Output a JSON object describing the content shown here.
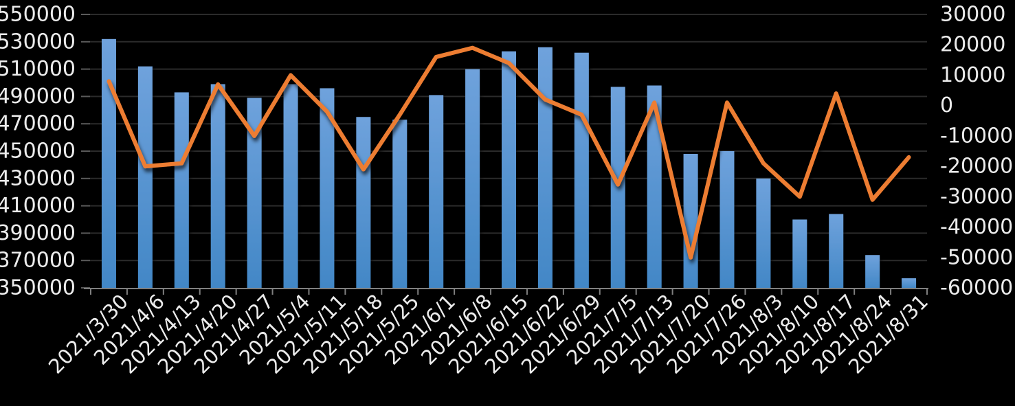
{
  "chart_data": {
    "type": "combo-bar-line",
    "title": "",
    "legend_position": "none",
    "grid": true,
    "background_color": "#000000",
    "gridline_color": "#2b2b2b",
    "axis_line_color": "#7f7f7f",
    "tick_color": "#5a5a5a",
    "label_color": "#ececec",
    "categories": [
      "2021/3/30",
      "2021/4/6",
      "2021/4/13",
      "2021/4/20",
      "2021/4/27",
      "2021/5/4",
      "2021/5/11",
      "2021/5/18",
      "2021/5/25",
      "2021/6/1",
      "2021/6/8",
      "2021/6/15",
      "2021/6/22",
      "2021/6/29",
      "2021/7/5",
      "2021/7/13",
      "2021/7/20",
      "2021/7/26",
      "2021/8/3",
      "2021/8/10",
      "2021/8/17",
      "2021/8/24",
      "2021/8/31"
    ],
    "series": [
      {
        "name": "bar-series",
        "type": "bar",
        "axis": "left",
        "color_top": "#6fa2dc",
        "color_bottom": "#4287c6",
        "values": [
          532000,
          512000,
          493000,
          499000,
          489000,
          499000,
          496000,
          475000,
          473000,
          491000,
          510000,
          523000,
          526000,
          522000,
          497000,
          498000,
          448000,
          450000,
          430000,
          400000,
          404000,
          374000,
          357000
        ]
      },
      {
        "name": "line-series",
        "type": "line",
        "axis": "right",
        "color": "#ed7d31",
        "values": [
          8000,
          -20000,
          -19000,
          7000,
          -10000,
          10000,
          -2000,
          -21000,
          -3000,
          16000,
          19000,
          14000,
          2000,
          -3000,
          -26000,
          1000,
          -50000,
          1000,
          -19000,
          -30000,
          4000,
          -31000,
          -17000
        ]
      }
    ],
    "left_axis": {
      "min": 350000,
      "max": 550000,
      "step": 20000,
      "tick_labels": [
        "550000",
        "530000",
        "510000",
        "490000",
        "470000",
        "450000",
        "430000",
        "410000",
        "390000",
        "370000",
        "350000"
      ]
    },
    "right_axis": {
      "min": -60000,
      "max": 30000,
      "step": 10000,
      "tick_labels": [
        "30000",
        "20000",
        "10000",
        "0",
        "-10000",
        "-20000",
        "-30000",
        "-40000",
        "-50000",
        "-60000"
      ]
    }
  }
}
